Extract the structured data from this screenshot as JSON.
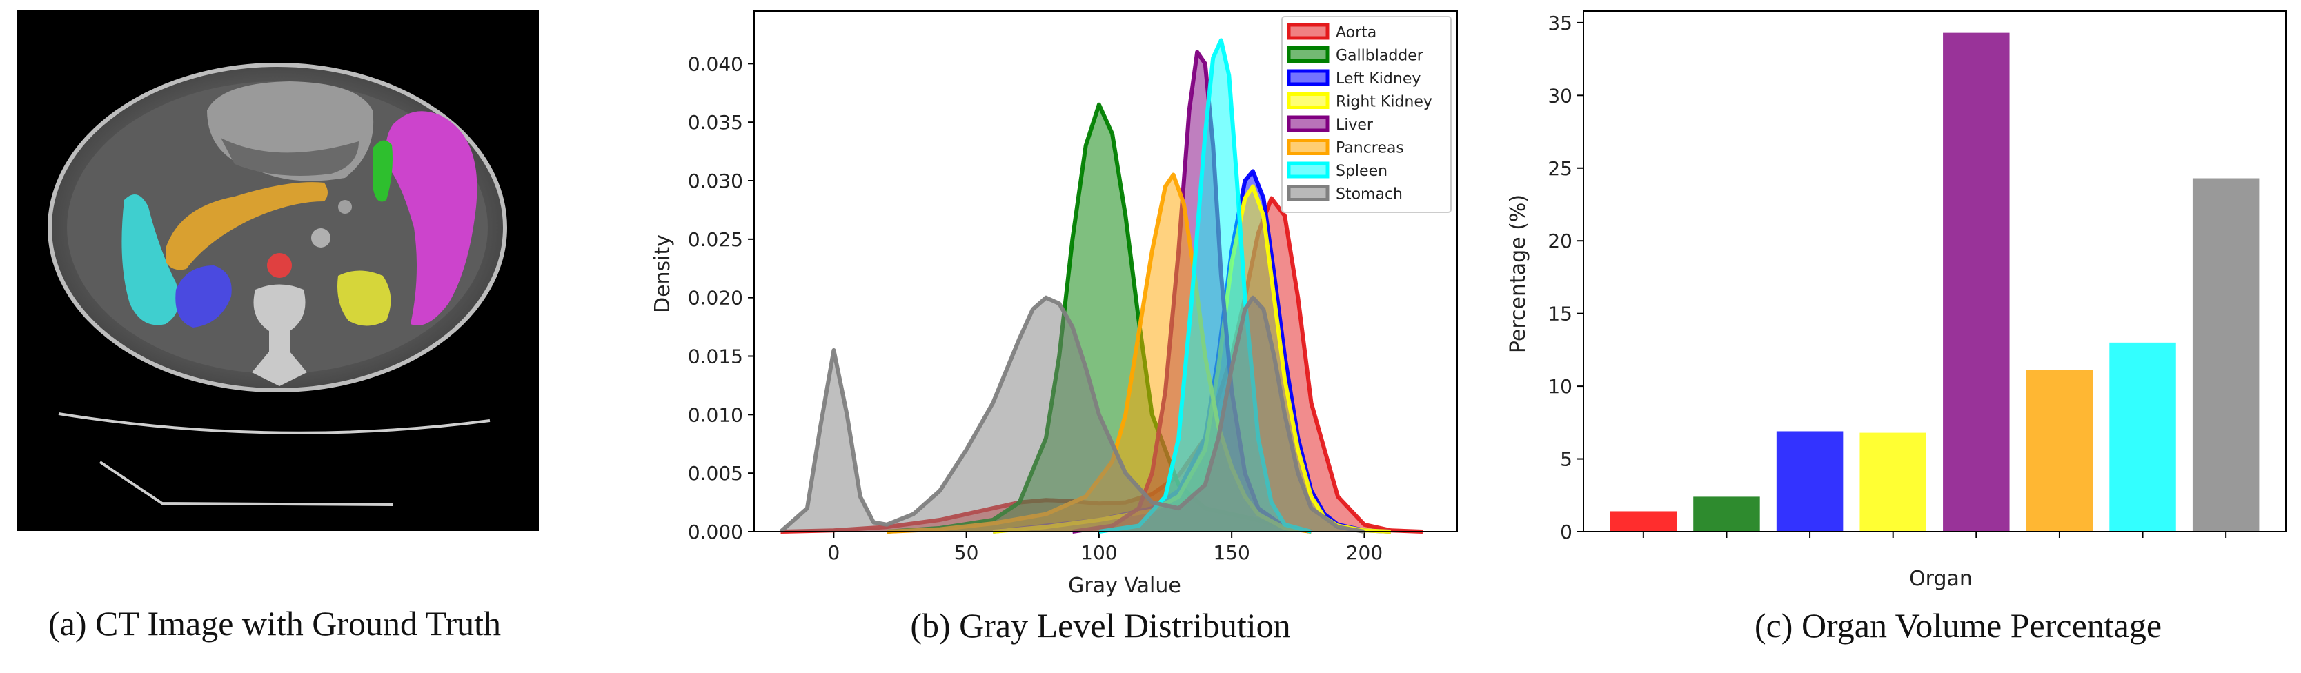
{
  "panel_a": {
    "caption": "(a) CT Image with Ground Truth"
  },
  "chart_data": [
    {
      "type": "area",
      "caption": "(b) Gray Level Distribution",
      "xlabel": "Gray Value",
      "ylabel": "Density",
      "xlim": [
        -30,
        235
      ],
      "ylim": [
        0,
        0.0445
      ],
      "xticks": [
        0,
        50,
        100,
        150,
        200
      ],
      "yticks": [
        0.0,
        0.005,
        0.01,
        0.015,
        0.02,
        0.025,
        0.03,
        0.035,
        0.04
      ],
      "ytick_labels": [
        "0.000",
        "0.005",
        "0.010",
        "0.015",
        "0.020",
        "0.025",
        "0.030",
        "0.035",
        "0.040"
      ],
      "legend_position": "top-right",
      "series": [
        {
          "name": "Aorta",
          "color": "#e41a1c",
          "x": [
            -20,
            0,
            20,
            40,
            60,
            70,
            80,
            90,
            100,
            110,
            120,
            130,
            140,
            150,
            155,
            160,
            165,
            170,
            175,
            180,
            190,
            200,
            210,
            222
          ],
          "y": [
            0,
            0.0001,
            0.0004,
            0.001,
            0.002,
            0.0025,
            0.0027,
            0.0026,
            0.0024,
            0.0025,
            0.0032,
            0.0048,
            0.008,
            0.015,
            0.02,
            0.0255,
            0.0285,
            0.027,
            0.02,
            0.011,
            0.003,
            0.0006,
            0.0001,
            0
          ]
        },
        {
          "name": "Gallbladder",
          "color": "#008000",
          "x": [
            20,
            40,
            60,
            70,
            80,
            85,
            90,
            95,
            100,
            105,
            110,
            115,
            120,
            130,
            140,
            150,
            160,
            170,
            180
          ],
          "y": [
            0,
            0.0003,
            0.001,
            0.0025,
            0.008,
            0.015,
            0.025,
            0.033,
            0.0365,
            0.034,
            0.027,
            0.018,
            0.01,
            0.004,
            0.002,
            0.0015,
            0.001,
            0.0004,
            0
          ]
        },
        {
          "name": "Left Kidney",
          "color": "#0000ff",
          "x": [
            60,
            80,
            100,
            120,
            130,
            140,
            145,
            150,
            155,
            158,
            162,
            166,
            170,
            175,
            180,
            185,
            190,
            200,
            210
          ],
          "y": [
            0,
            0.0005,
            0.001,
            0.002,
            0.0035,
            0.008,
            0.015,
            0.024,
            0.03,
            0.0308,
            0.0285,
            0.022,
            0.015,
            0.008,
            0.0035,
            0.0015,
            0.0006,
            0.0001,
            0
          ]
        },
        {
          "name": "Right Kidney",
          "color": "#ffff00",
          "x": [
            60,
            80,
            100,
            120,
            130,
            140,
            145,
            150,
            155,
            158,
            162,
            166,
            170,
            175,
            180,
            185,
            190,
            200,
            210
          ],
          "y": [
            0,
            0.0004,
            0.001,
            0.0018,
            0.003,
            0.007,
            0.014,
            0.023,
            0.0285,
            0.0295,
            0.027,
            0.02,
            0.013,
            0.007,
            0.003,
            0.0012,
            0.0005,
            0.0001,
            0
          ]
        },
        {
          "name": "Liver",
          "color": "#800080",
          "x": [
            90,
            105,
            115,
            120,
            125,
            130,
            134,
            137,
            140,
            143,
            146,
            150,
            155,
            160,
            170,
            180
          ],
          "y": [
            0,
            0.0005,
            0.002,
            0.005,
            0.012,
            0.024,
            0.036,
            0.041,
            0.04,
            0.033,
            0.022,
            0.012,
            0.005,
            0.002,
            0.0004,
            0
          ]
        },
        {
          "name": "Pancreas",
          "color": "#ffa500",
          "x": [
            20,
            40,
            60,
            80,
            95,
            105,
            110,
            115,
            120,
            125,
            128,
            132,
            136,
            140,
            145,
            150,
            155,
            160,
            170,
            180
          ],
          "y": [
            0,
            0.0002,
            0.0007,
            0.0015,
            0.003,
            0.006,
            0.01,
            0.017,
            0.024,
            0.0295,
            0.0305,
            0.028,
            0.022,
            0.015,
            0.009,
            0.0055,
            0.003,
            0.0015,
            0.0003,
            0
          ]
        },
        {
          "name": "Spleen",
          "color": "#00ffff",
          "x": [
            100,
            115,
            125,
            130,
            135,
            140,
            143,
            146,
            149,
            152,
            155,
            160,
            165,
            170,
            180
          ],
          "y": [
            0,
            0.0005,
            0.003,
            0.008,
            0.02,
            0.034,
            0.0405,
            0.042,
            0.039,
            0.03,
            0.02,
            0.008,
            0.0025,
            0.0006,
            0
          ]
        },
        {
          "name": "Stomach",
          "color": "#808080",
          "x": [
            -20,
            -10,
            -5,
            0,
            5,
            10,
            15,
            20,
            30,
            40,
            50,
            60,
            70,
            75,
            80,
            85,
            90,
            95,
            100,
            110,
            120,
            130,
            140,
            145,
            150,
            155,
            158,
            162,
            166,
            170,
            175,
            180,
            190,
            200
          ],
          "y": [
            0,
            0.002,
            0.009,
            0.0155,
            0.01,
            0.003,
            0.0008,
            0.0006,
            0.0015,
            0.0035,
            0.007,
            0.011,
            0.0165,
            0.019,
            0.02,
            0.0195,
            0.0175,
            0.014,
            0.01,
            0.005,
            0.0025,
            0.002,
            0.004,
            0.008,
            0.014,
            0.019,
            0.02,
            0.019,
            0.015,
            0.01,
            0.005,
            0.002,
            0.0004,
            0
          ]
        }
      ]
    },
    {
      "type": "bar",
      "caption": "(c) Organ Volume Percentage",
      "xlabel": "Organ",
      "ylabel": "Percentage (%)",
      "ylim": [
        0,
        35.8
      ],
      "yticks": [
        0,
        5,
        10,
        15,
        20,
        25,
        30,
        35
      ],
      "categories": [
        "Aorta",
        "Gallbladder",
        "Left Kidney",
        "Right Kidney",
        "Liver",
        "Pancreas",
        "Spleen",
        "Stomach"
      ],
      "values": [
        1.4,
        2.4,
        6.9,
        6.8,
        34.3,
        11.1,
        13.0,
        24.3
      ],
      "colors": [
        "#ff2d2d",
        "#2e8b2e",
        "#3333ff",
        "#ffff33",
        "#993399",
        "#ffb733",
        "#33ffff",
        "#999999"
      ]
    }
  ]
}
